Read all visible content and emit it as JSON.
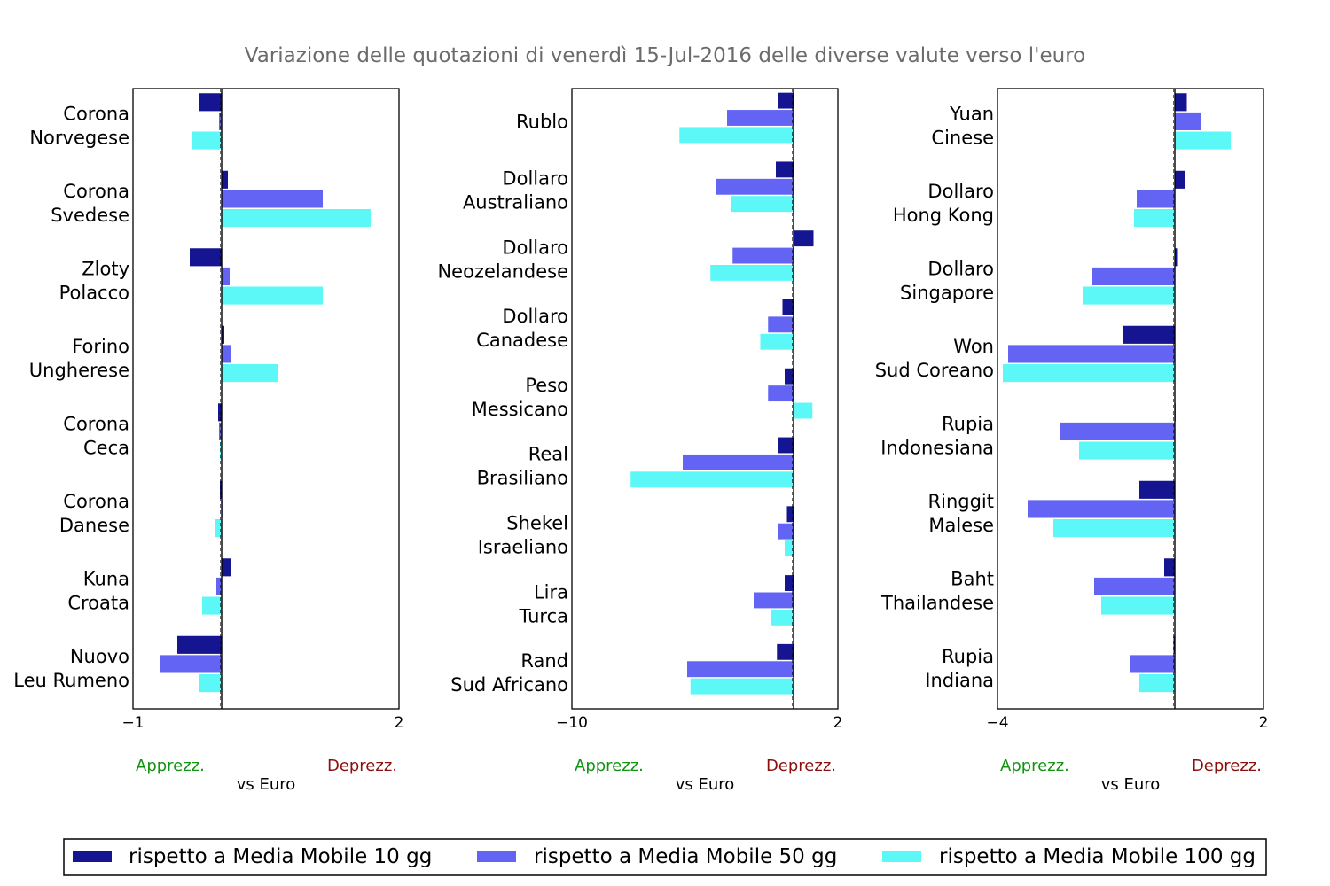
{
  "title": "Variazione delle quotazioni di venerdì 15-Jul-2016 delle diverse valute verso l'euro",
  "colors": {
    "series10": "#151591",
    "series50": "#6464f4",
    "series100": "#5cf7f7",
    "apprezz": "#129412",
    "deprezz": "#8c0f0f",
    "title": "#6b6b6b"
  },
  "legend": [
    "rispetto a Media Mobile 10 gg",
    "rispetto a Media Mobile 50 gg",
    "rispetto a Media Mobile 100 gg"
  ],
  "chart_data": [
    {
      "type": "bar",
      "orientation": "horizontal",
      "categories": [
        [
          "Corona",
          "Norvegese"
        ],
        [
          "Corona",
          "Svedese"
        ],
        [
          "Zloty",
          "Polacco"
        ],
        [
          "Forino",
          "Ungherese"
        ],
        [
          "Corona",
          "Ceca"
        ],
        [
          "Corona",
          "Danese"
        ],
        [
          "Kuna",
          "Croata"
        ],
        [
          "Nuovo",
          "Leu Rumeno"
        ]
      ],
      "series": [
        {
          "name": "rispetto a Media Mobile 10 gg",
          "values": [
            -0.25,
            0.07,
            -0.36,
            0.03,
            -0.04,
            -0.02,
            0.1,
            -0.5
          ]
        },
        {
          "name": "rispetto a Media Mobile 50 gg",
          "values": [
            -0.03,
            1.14,
            0.09,
            0.11,
            -0.03,
            0.0,
            -0.06,
            -0.7
          ]
        },
        {
          "name": "rispetto a Media Mobile 100 gg",
          "values": [
            -0.34,
            1.68,
            1.14,
            0.63,
            -0.02,
            -0.08,
            -0.22,
            -0.26
          ]
        }
      ],
      "xlim": [
        -1,
        2
      ],
      "xticks": [
        "−1",
        "2"
      ],
      "xlabel": "vs Euro",
      "left_label": "Apprezz.",
      "right_label": "Deprezz."
    },
    {
      "type": "bar",
      "orientation": "horizontal",
      "categories": [
        [
          "Rublo"
        ],
        [
          "Dollaro",
          "Australiano"
        ],
        [
          "Dollaro",
          "Neozelandese"
        ],
        [
          "Dollaro",
          "Canadese"
        ],
        [
          "Peso",
          "Messicano"
        ],
        [
          "Real",
          "Brasiliano"
        ],
        [
          "Shekel",
          "Israeliano"
        ],
        [
          "Lira",
          "Turca"
        ],
        [
          "Rand",
          "Sud Africano"
        ]
      ],
      "series": [
        {
          "name": "rispetto a Media Mobile 10 gg",
          "values": [
            -0.7,
            -0.8,
            0.9,
            -0.5,
            -0.4,
            -0.7,
            -0.3,
            -0.4,
            -0.75
          ]
        },
        {
          "name": "rispetto a Media Mobile 50 gg",
          "values": [
            -3.0,
            -3.5,
            -2.75,
            -1.15,
            -1.15,
            -5.0,
            -0.7,
            -1.8,
            -4.8
          ]
        },
        {
          "name": "rispetto a Media Mobile 100 gg",
          "values": [
            -5.15,
            -2.8,
            -3.75,
            -1.5,
            0.85,
            -7.35,
            -0.4,
            -1.0,
            -4.65
          ]
        }
      ],
      "xlim": [
        -10,
        2
      ],
      "xticks": [
        "−10",
        "2"
      ],
      "xlabel": "vs Euro",
      "left_label": "Apprezz.",
      "right_label": "Deprezz."
    },
    {
      "type": "bar",
      "orientation": "horizontal",
      "categories": [
        [
          "Yuan",
          "Cinese"
        ],
        [
          "Dollaro",
          "Hong Kong"
        ],
        [
          "Dollaro",
          "Singapore"
        ],
        [
          "Won",
          "Sud Coreano"
        ],
        [
          "Rupia",
          "Indonesiana"
        ],
        [
          "Ringgit",
          "Malese"
        ],
        [
          "Baht",
          "Thailandese"
        ],
        [
          "Rupia",
          "Indiana"
        ]
      ],
      "series": [
        {
          "name": "rispetto a Media Mobile 10 gg",
          "values": [
            0.27,
            0.22,
            0.07,
            -1.17,
            0.0,
            -0.8,
            -0.24,
            -0.03
          ]
        },
        {
          "name": "rispetto a Media Mobile 50 gg",
          "values": [
            0.59,
            -0.86,
            -1.86,
            -3.76,
            -2.58,
            -3.32,
            -1.82,
            -1.0
          ]
        },
        {
          "name": "rispetto a Media Mobile 100 gg",
          "values": [
            1.26,
            -0.92,
            -2.08,
            -3.88,
            -2.16,
            -2.74,
            -1.66,
            -0.8
          ]
        }
      ],
      "xlim": [
        -4,
        2
      ],
      "xticks": [
        "−4",
        "2"
      ],
      "xlabel": "vs Euro",
      "left_label": "Apprezz.",
      "right_label": "Deprezz."
    }
  ]
}
